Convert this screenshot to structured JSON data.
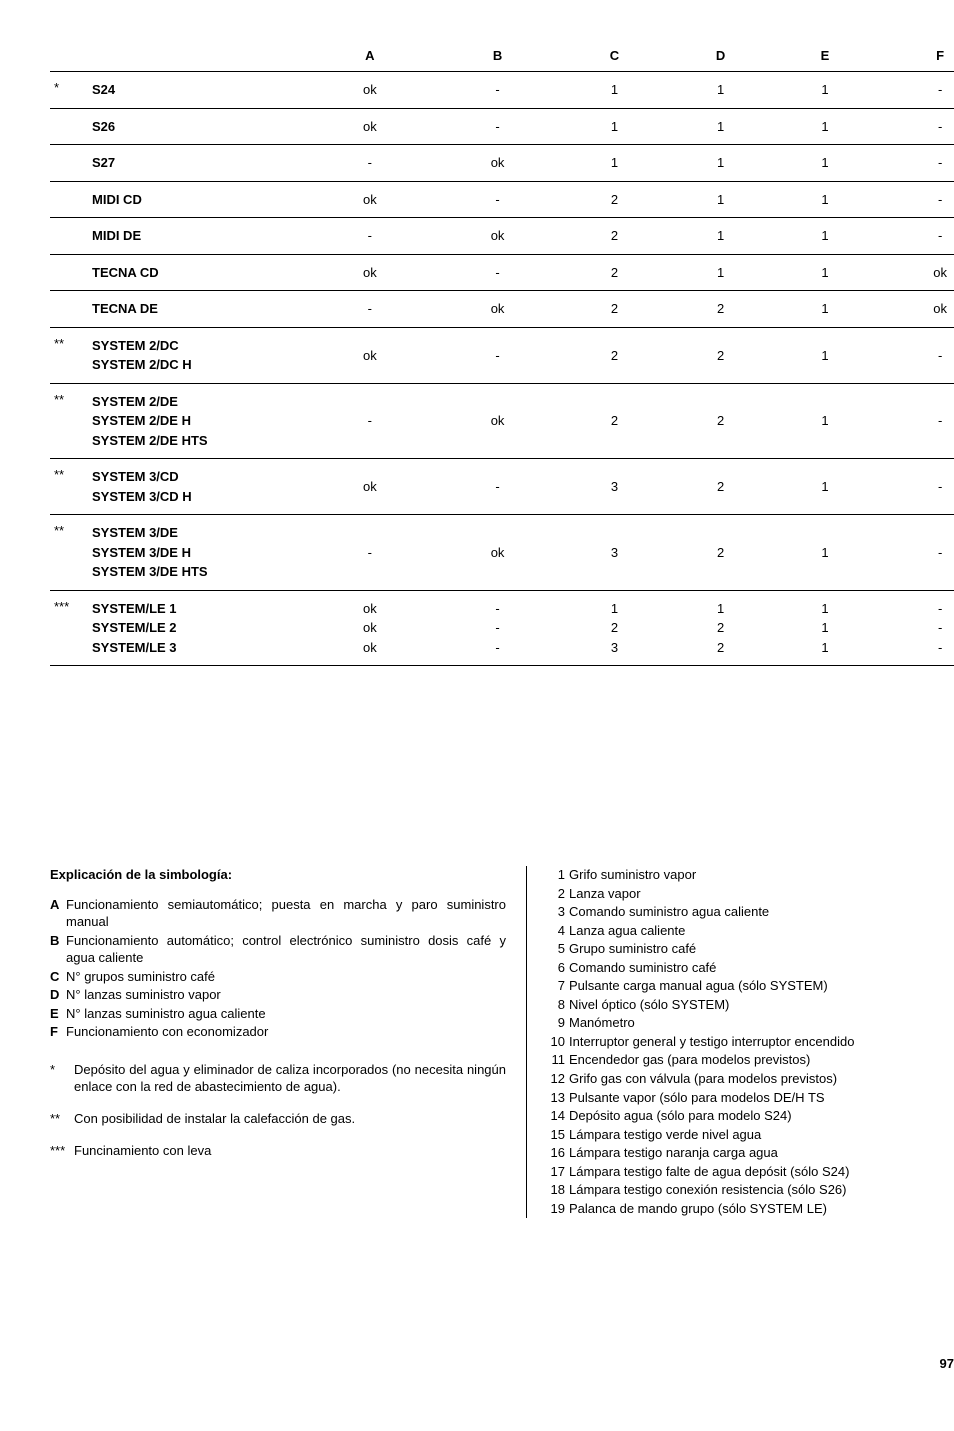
{
  "table": {
    "columns": [
      "A",
      "B",
      "C",
      "D",
      "E",
      "F"
    ],
    "rows": [
      {
        "star": "*",
        "label": "S24",
        "cells": [
          "ok",
          "-",
          "1",
          "1",
          "1",
          "-"
        ]
      },
      {
        "star": "",
        "label": "S26",
        "cells": [
          "ok",
          "-",
          "1",
          "1",
          "1",
          "-"
        ]
      },
      {
        "star": "",
        "label": "S27",
        "cells": [
          "-",
          "ok",
          "1",
          "1",
          "1",
          "-"
        ]
      },
      {
        "star": "",
        "label": "MIDI CD",
        "cells": [
          "ok",
          "-",
          "2",
          "1",
          "1",
          "-"
        ]
      },
      {
        "star": "",
        "label": "MIDI DE",
        "cells": [
          "-",
          "ok",
          "2",
          "1",
          "1",
          "-"
        ]
      },
      {
        "star": "",
        "label": "TECNA CD",
        "cells": [
          "ok",
          "-",
          "2",
          "1",
          "1",
          "ok"
        ]
      },
      {
        "star": "",
        "label": "TECNA DE",
        "cells": [
          "-",
          "ok",
          "2",
          "2",
          "1",
          "ok"
        ]
      },
      {
        "star": "**",
        "label": "SYSTEM 2/DC\nSYSTEM 2/DC H",
        "cells": [
          "ok",
          "-",
          "2",
          "2",
          "1",
          "-"
        ]
      },
      {
        "star": "**",
        "label": "SYSTEM 2/DE\nSYSTEM 2/DE H\nSYSTEM 2/DE HTS",
        "cells": [
          "-",
          "ok",
          "2",
          "2",
          "1",
          "-"
        ]
      },
      {
        "star": "**",
        "label": "SYSTEM 3/CD\nSYSTEM 3/CD H",
        "cells": [
          "ok",
          "-",
          "3",
          "2",
          "1",
          "-"
        ]
      },
      {
        "star": "**",
        "label": "SYSTEM 3/DE\nSYSTEM 3/DE H\nSYSTEM 3/DE HTS",
        "cells": [
          "-",
          "ok",
          "3",
          "2",
          "1",
          "-"
        ]
      }
    ],
    "triple": {
      "star": "***",
      "lines": [
        {
          "label": "SYSTEM/LE 1",
          "cells": [
            "ok",
            "-",
            "1",
            "1",
            "1",
            "-"
          ]
        },
        {
          "label": "SYSTEM/LE 2",
          "cells": [
            "ok",
            "-",
            "2",
            "2",
            "1",
            "-"
          ]
        },
        {
          "label": "SYSTEM/LE 3",
          "cells": [
            "ok",
            "-",
            "3",
            "2",
            "1",
            "-"
          ]
        }
      ]
    }
  },
  "left": {
    "title": "Explicación de la simbología:",
    "letters": [
      {
        "k": "A",
        "t": "Funcionamiento semiautomático; puesta en marcha  y paro suministro manual"
      },
      {
        "k": "B",
        "t": "Funcionamiento automático; control electrónico suministro dosis café y agua caliente"
      },
      {
        "k": "C",
        "t": "N° grupos suministro café"
      },
      {
        "k": "D",
        "t": "N° lanzas suministro vapor"
      },
      {
        "k": "E",
        "t": "N° lanzas suministro agua caliente"
      },
      {
        "k": "F",
        "t": "Funcionamiento con economizador"
      }
    ],
    "stars": [
      {
        "k": "*",
        "t": "Depósito del agua y eliminador de caliza incorporados (no necesita ningún enlace con la red de abastecimiento de agua)."
      },
      {
        "k": "**",
        "t": "Con posibilidad de instalar la calefacción de gas."
      },
      {
        "k": "***",
        "t": "Funcinamiento con leva"
      }
    ]
  },
  "right": {
    "items": [
      {
        "n": "1",
        "t": "Grifo suministro vapor"
      },
      {
        "n": "2",
        "t": "Lanza vapor"
      },
      {
        "n": "3",
        "t": "Comando suministro agua caliente"
      },
      {
        "n": "4",
        "t": "Lanza agua caliente"
      },
      {
        "n": "5",
        "t": "Grupo suministro café"
      },
      {
        "n": "6",
        "t": "Comando suministro café"
      },
      {
        "n": "7",
        "t": "Pulsante carga manual agua (sólo SYSTEM)"
      },
      {
        "n": "8",
        "t": "Nivel óptico (sólo SYSTEM)"
      },
      {
        "n": "9",
        "t": "Manómetro"
      },
      {
        "n": "10",
        "t": "Interruptor general y testigo interruptor encendido"
      },
      {
        "n": "11",
        "t": "Encendedor gas (para modelos previstos)"
      },
      {
        "n": "12",
        "t": "Grifo gas con válvula (para modelos previstos)"
      },
      {
        "n": "13",
        "t": "Pulsante vapor (sólo para modelos DE/H TS"
      },
      {
        "n": "14",
        "t": "Depósito agua (sólo para modelo S24)"
      },
      {
        "n": "15",
        "t": "Lámpara testigo verde nivel agua"
      },
      {
        "n": "16",
        "t": "Lámpara testigo naranja carga agua"
      },
      {
        "n": "17",
        "t": "Lámpara testigo falte de agua depósit (sólo S24)"
      },
      {
        "n": "18",
        "t": "Lámpara testigo conexión resistencia (sólo S26)"
      },
      {
        "n": "19",
        "t": "Palanca de mando grupo (sólo SYSTEM LE)"
      }
    ]
  },
  "page_number": "97"
}
